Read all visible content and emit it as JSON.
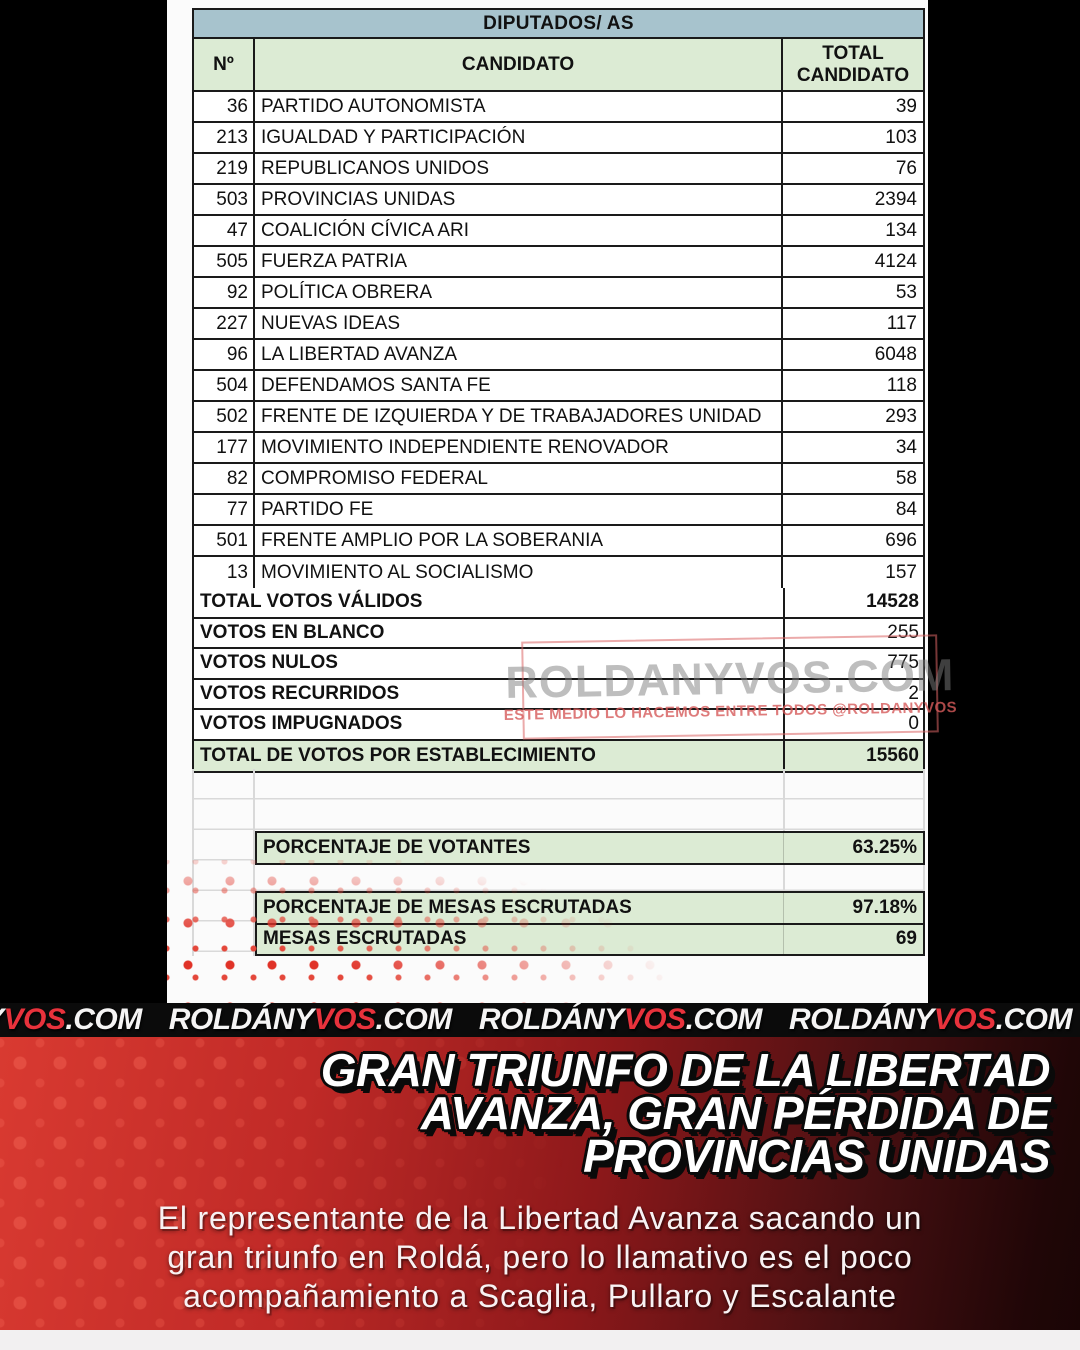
{
  "colors": {
    "header-blue": "#a7c3cd",
    "cell-green": "#dcebd4",
    "accent-red": "#e8323c",
    "section-red": "#c42b27",
    "watermark-red": "#d96a6a"
  },
  "table": {
    "title": "DIPUTADOS/ AS",
    "columns": {
      "num": "Nº",
      "candidate": "CANDIDATO",
      "total": "TOTAL CANDIDATO"
    },
    "rows": [
      {
        "num": "36",
        "name": "PARTIDO AUTONOMISTA",
        "total": "39"
      },
      {
        "num": "213",
        "name": "IGUALDAD Y PARTICIPACIÓN",
        "total": "103"
      },
      {
        "num": "219",
        "name": "REPUBLICANOS UNIDOS",
        "total": "76"
      },
      {
        "num": "503",
        "name": "PROVINCIAS UNIDAS",
        "total": "2394"
      },
      {
        "num": "47",
        "name": "COALICIÓN CÍVICA ARI",
        "total": "134"
      },
      {
        "num": "505",
        "name": "FUERZA PATRIA",
        "total": "4124"
      },
      {
        "num": "92",
        "name": "POLÍTICA OBRERA",
        "total": "53"
      },
      {
        "num": "227",
        "name": "NUEVAS IDEAS",
        "total": "117"
      },
      {
        "num": "96",
        "name": "LA LIBERTAD AVANZA",
        "total": "6048"
      },
      {
        "num": "504",
        "name": "DEFENDAMOS SANTA FE",
        "total": "118"
      },
      {
        "num": "502",
        "name": "FRENTE DE IZQUIERDA Y DE TRABAJADORES UNIDAD",
        "total": "293"
      },
      {
        "num": "177",
        "name": "MOVIMIENTO INDEPENDIENTE RENOVADOR",
        "total": "34"
      },
      {
        "num": "82",
        "name": "COMPROMISO FEDERAL",
        "total": "58"
      },
      {
        "num": "77",
        "name": "PARTIDO FE",
        "total": "84"
      },
      {
        "num": "501",
        "name": "FRENTE AMPLIO POR LA SOBERANIA",
        "total": "696"
      },
      {
        "num": "13",
        "name": "MOVIMIENTO AL SOCIALISMO",
        "total": "157"
      }
    ],
    "summary": [
      {
        "label": "TOTAL VOTOS VÁLIDOS",
        "value": "14528",
        "green": false,
        "bold": true
      },
      {
        "label": "VOTOS EN BLANCO",
        "value": "255",
        "green": false,
        "bold": false
      },
      {
        "label": "VOTOS NULOS",
        "value": "775",
        "green": false,
        "bold": false
      },
      {
        "label": "VOTOS RECURRIDOS",
        "value": "2",
        "green": false,
        "bold": false
      },
      {
        "label": "VOTOS IMPUGNADOS",
        "value": "0",
        "green": false,
        "bold": false
      },
      {
        "label": "TOTAL DE VOTOS POR ESTABLECIMIENTO",
        "value": "15560",
        "green": true,
        "bold": true
      }
    ],
    "stats": [
      {
        "label": "PORCENTAJE DE VOTANTES",
        "value": "63.25%"
      },
      {
        "label": "PORCENTAJE DE MESAS ESCRUTADAS",
        "value": "97.18%"
      },
      {
        "label": "MESAS ESCRUTADAS",
        "value": "69"
      }
    ]
  },
  "watermark": {
    "main": "ROLDANYVOS.COM",
    "sub": "ESTE MEDIO LO HACEMOS ENTRE TODOS @ROLDANYVOS"
  },
  "banner": {
    "segments": [
      {
        "parts": [
          {
            "t": "Y",
            "c": "white"
          },
          {
            "t": "VOS",
            "c": "red"
          },
          {
            "t": ".COM",
            "c": "white"
          }
        ]
      },
      {
        "parts": [
          {
            "t": "ROLDÁNY",
            "c": "white"
          },
          {
            "t": "VOS",
            "c": "red"
          },
          {
            "t": ".COM",
            "c": "white"
          }
        ]
      },
      {
        "parts": [
          {
            "t": "ROLDÁNY",
            "c": "white"
          },
          {
            "t": "VOS",
            "c": "red"
          },
          {
            "t": ".COM",
            "c": "white"
          }
        ]
      },
      {
        "parts": [
          {
            "t": "ROLDÁNY",
            "c": "white"
          },
          {
            "t": "VOS",
            "c": "red"
          },
          {
            "t": ".COM",
            "c": "white"
          }
        ]
      }
    ]
  },
  "headline": {
    "lines": [
      "GRAN TRIUNFO DE LA LIBERTAD",
      "AVANZA, GRAN PÉRDIDA DE",
      "PROVINCIAS UNIDAS"
    ]
  },
  "subtitle": {
    "lines": [
      "El representante de la Libertad Avanza sacando un",
      "gran triunfo en Roldá, pero lo llamativo es el poco",
      "acompañamiento a Scaglia, Pullaro y Escalante"
    ]
  }
}
